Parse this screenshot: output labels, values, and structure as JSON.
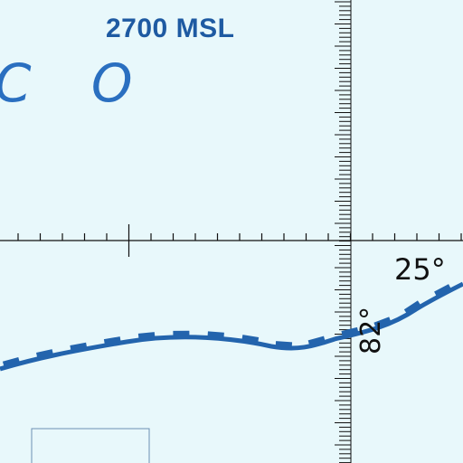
{
  "map": {
    "altitude_label": "2700 MSL",
    "place_name_fragment": "C O",
    "latitude_label": "25°",
    "longitude_label": "82°",
    "colors": {
      "background": "#e8f8fb",
      "route": "#2364ad",
      "text_blue": "#1e5aa2",
      "place_blue": "#2a6fc0",
      "graticule": "#111111"
    }
  }
}
